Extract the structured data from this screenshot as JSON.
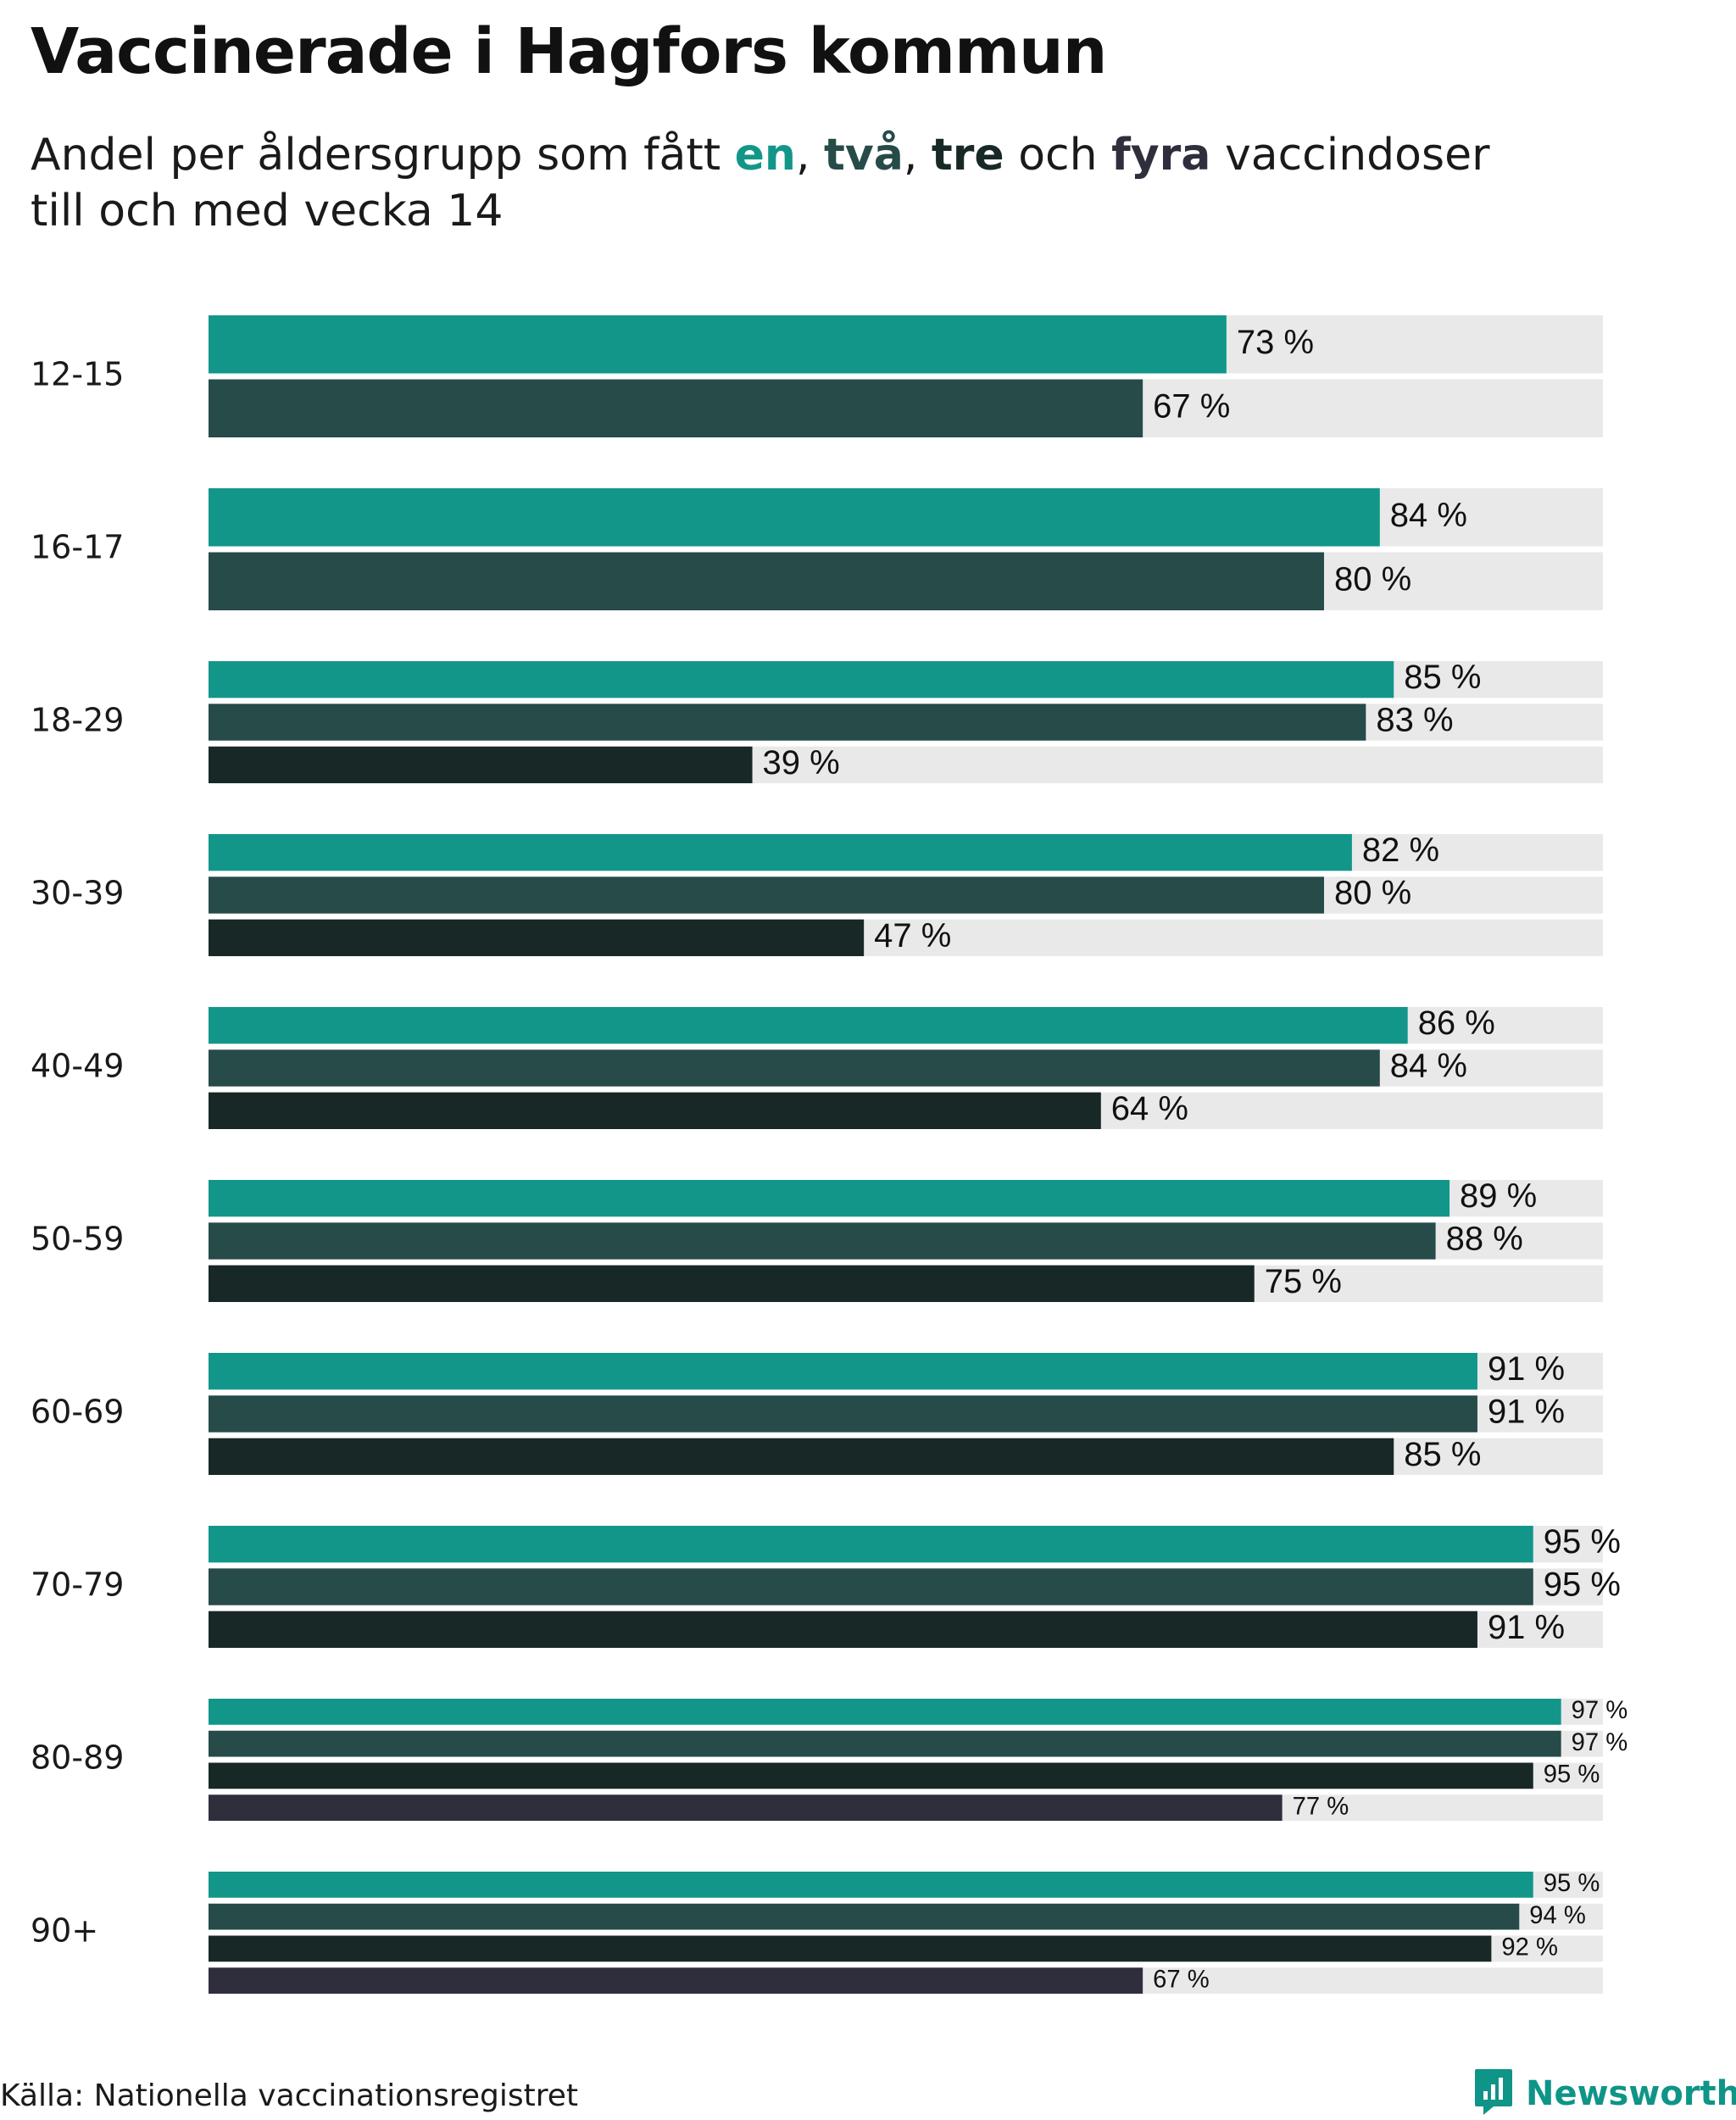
{
  "title": "Vaccinerade i Hagfors kommun",
  "subtitle": {
    "line1_prefix": "Andel per åldersgrupp som fått",
    "dose_words": [
      "en",
      "två",
      "tre",
      "fyra"
    ],
    "sep1": ",",
    "sep2": ",",
    "and_word": "och",
    "line1_suffix": "vaccindoser",
    "line2": "till och med vecka 14"
  },
  "colors": {
    "dose1": "#12968a",
    "dose2": "#264b48",
    "dose3": "#182826",
    "dose4": "#2f2e3d",
    "track": "#e9e9e9"
  },
  "source": "Källa: Nationella vaccinationsregistret",
  "logo": {
    "name": "Newsworthy",
    "icon": "newsworthy-logo-icon"
  },
  "chart_data": {
    "type": "bar",
    "orientation": "horizontal",
    "title": "Vaccinerade i Hagfors kommun",
    "xlim": [
      0,
      100
    ],
    "value_suffix": " %",
    "categories": [
      "12-15",
      "16-17",
      "18-29",
      "30-39",
      "40-49",
      "50-59",
      "60-69",
      "70-79",
      "80-89",
      "90+"
    ],
    "series": [
      {
        "name": "en",
        "values": [
          73,
          84,
          85,
          82,
          86,
          89,
          91,
          95,
          97,
          95
        ]
      },
      {
        "name": "två",
        "values": [
          67,
          80,
          83,
          80,
          84,
          88,
          91,
          95,
          97,
          94
        ]
      },
      {
        "name": "tre",
        "values": [
          null,
          null,
          39,
          47,
          64,
          75,
          85,
          91,
          95,
          92
        ]
      },
      {
        "name": "fyra",
        "values": [
          null,
          null,
          null,
          null,
          null,
          null,
          null,
          null,
          77,
          67
        ]
      }
    ]
  }
}
